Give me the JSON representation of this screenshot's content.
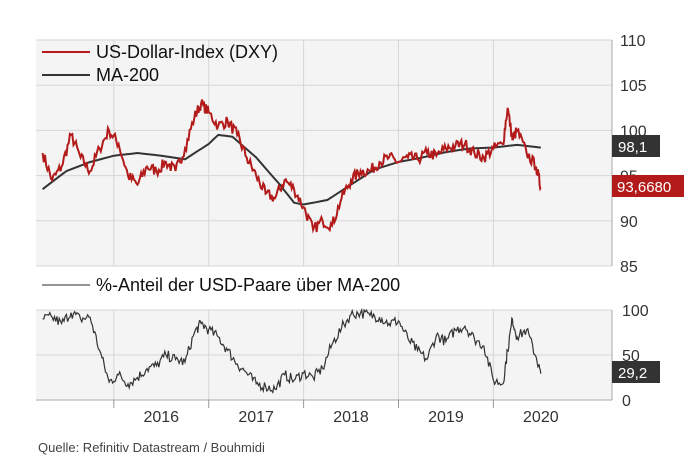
{
  "chart_data": [
    {
      "type": "line",
      "title": "",
      "xlabel": "",
      "ylabel": "",
      "ylim": [
        85,
        110
      ],
      "y_ticks": [
        "110",
        "105",
        "100",
        "95",
        "90",
        "85"
      ],
      "series": [
        {
          "name": "US-Dollar-Index (DXY)",
          "color": "#b31b1b",
          "x": [
            2015.25,
            2015.35,
            2015.45,
            2015.55,
            2015.65,
            2015.75,
            2015.85,
            2015.95,
            2016.05,
            2016.15,
            2016.25,
            2016.35,
            2016.45,
            2016.55,
            2016.65,
            2016.75,
            2016.85,
            2016.92,
            2017.0,
            2017.1,
            2017.2,
            2017.3,
            2017.4,
            2017.5,
            2017.6,
            2017.7,
            2017.8,
            2017.9,
            2018.0,
            2018.1,
            2018.2,
            2018.3,
            2018.4,
            2018.5,
            2018.6,
            2018.7,
            2018.8,
            2018.9,
            2019.0,
            2019.1,
            2019.2,
            2019.3,
            2019.4,
            2019.5,
            2019.6,
            2019.7,
            2019.8,
            2019.9,
            2020.0,
            2020.1,
            2020.15,
            2020.2,
            2020.25,
            2020.35,
            2020.45,
            2020.5
          ],
          "values": [
            97.5,
            94.5,
            96,
            99.5,
            97,
            95.5,
            98,
            100,
            98.5,
            95,
            94,
            96,
            95.5,
            96.5,
            95.5,
            98,
            101.5,
            103,
            102,
            100.5,
            101,
            99.5,
            97,
            95,
            93,
            92.5,
            94.5,
            93.5,
            91.5,
            89,
            90,
            89.5,
            92.5,
            94.5,
            95.5,
            95.5,
            96.5,
            97,
            96.5,
            97,
            96.8,
            97.5,
            97.2,
            98,
            98.3,
            98.5,
            97.5,
            97,
            98,
            98.5,
            102.5,
            99,
            100,
            97.5,
            96,
            93.668
          ],
          "badge": "93,6680"
        },
        {
          "name": "MA-200",
          "color": "#333333",
          "x": [
            2015.25,
            2015.5,
            2015.75,
            2016.0,
            2016.25,
            2016.5,
            2016.75,
            2017.0,
            2017.1,
            2017.25,
            2017.5,
            2017.75,
            2017.9,
            2018.0,
            2018.25,
            2018.5,
            2018.75,
            2019.0,
            2019.25,
            2019.5,
            2019.75,
            2020.0,
            2020.25,
            2020.5
          ],
          "values": [
            93.5,
            95.5,
            96.5,
            97.2,
            97.5,
            97.2,
            96.8,
            98.5,
            99.5,
            99.3,
            97,
            94,
            92,
            91.8,
            92.3,
            94,
            95.7,
            96.5,
            97,
            97.6,
            98,
            98.1,
            98.4,
            98.1
          ],
          "badge": "98,1"
        }
      ]
    },
    {
      "type": "line",
      "title": "",
      "ylim": [
        0,
        100
      ],
      "y_ticks": [
        "100",
        "50",
        "0"
      ],
      "x_ticks": [
        "2016",
        "2017",
        "2018",
        "2019",
        "2020"
      ],
      "series": [
        {
          "name": "%-Anteil der USD-Paare über MA-200",
          "color": "#333333",
          "x": [
            2015.25,
            2015.35,
            2015.45,
            2015.55,
            2015.65,
            2015.75,
            2015.85,
            2015.95,
            2016.05,
            2016.15,
            2016.25,
            2016.35,
            2016.45,
            2016.55,
            2016.65,
            2016.75,
            2016.85,
            2016.92,
            2017.0,
            2017.1,
            2017.2,
            2017.3,
            2017.4,
            2017.5,
            2017.6,
            2017.7,
            2017.8,
            2017.9,
            2018.0,
            2018.1,
            2018.2,
            2018.3,
            2018.4,
            2018.5,
            2018.6,
            2018.7,
            2018.8,
            2018.9,
            2019.0,
            2019.1,
            2019.2,
            2019.3,
            2019.4,
            2019.5,
            2019.6,
            2019.7,
            2019.8,
            2019.9,
            2020.0,
            2020.1,
            2020.15,
            2020.2,
            2020.25,
            2020.35,
            2020.45,
            2020.5
          ],
          "values": [
            90,
            92,
            85,
            97,
            90,
            92,
            55,
            20,
            28,
            18,
            25,
            35,
            38,
            50,
            45,
            42,
            75,
            85,
            78,
            70,
            55,
            40,
            30,
            18,
            15,
            12,
            28,
            22,
            30,
            25,
            35,
            62,
            80,
            95,
            97,
            94,
            92,
            85,
            88,
            68,
            55,
            45,
            72,
            65,
            78,
            82,
            68,
            60,
            22,
            18,
            55,
            90,
            70,
            78,
            48,
            29.2
          ],
          "badge": "29,2"
        }
      ]
    }
  ],
  "source": "Quelle: Refinitiv Datastream / Bouhmidi",
  "colors": {
    "dxy": "#b31b1b",
    "ma": "#333333",
    "badge_dark": "#333333",
    "grid": "#cccccc",
    "plot_bg": "#f4f4f4"
  }
}
